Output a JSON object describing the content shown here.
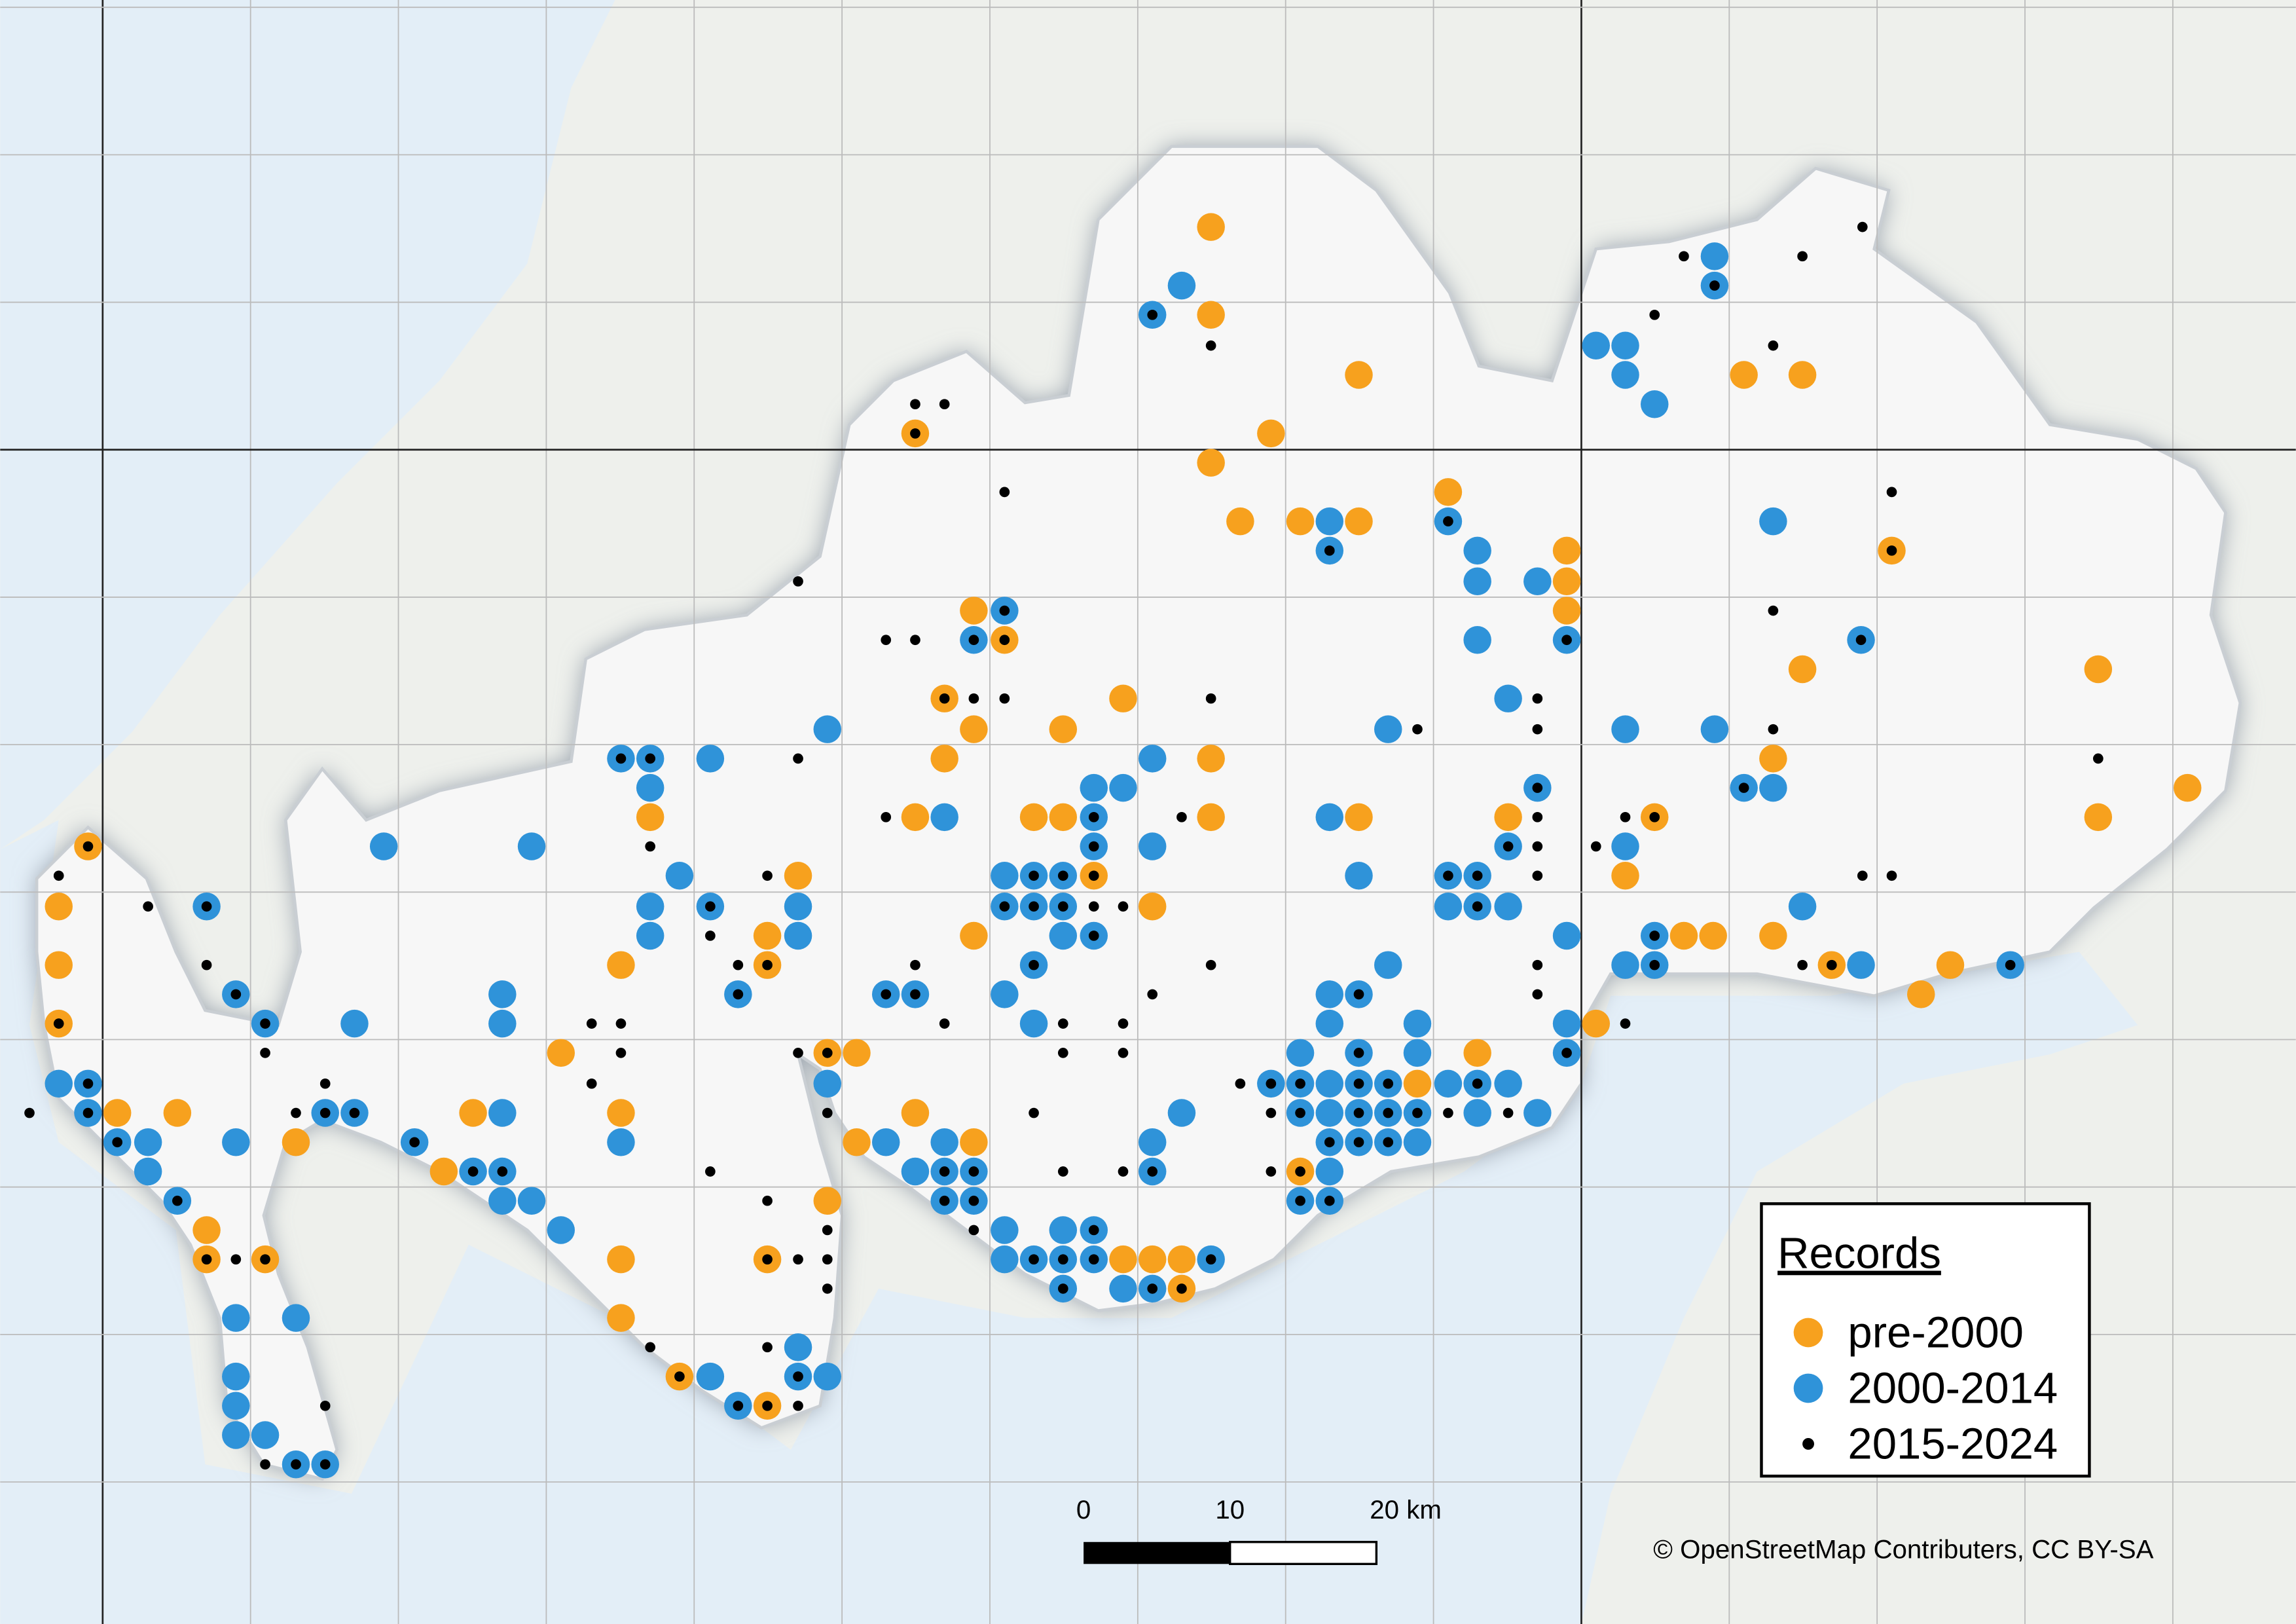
{
  "legend": {
    "title": "Records",
    "items": [
      {
        "name": "pre-2000",
        "color": "#f7a11e"
      },
      {
        "name": "2000-2014",
        "color": "#2f93d9"
      },
      {
        "name": "2015-2024",
        "color": "#000000"
      }
    ]
  },
  "scale_bar": {
    "labels": [
      "0",
      "10",
      "20 km"
    ]
  },
  "attribution": "© OpenStreetMap Contributers, CC BY-SA"
}
